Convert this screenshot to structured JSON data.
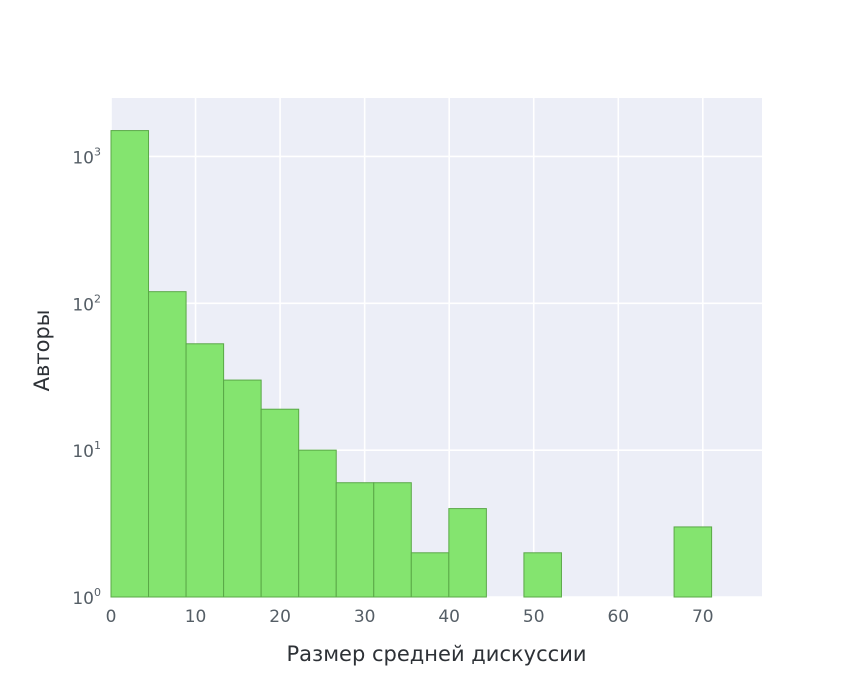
{
  "chart_data": {
    "type": "bar",
    "xlabel": "Размер средней дискуссии",
    "ylabel": "Авторы",
    "yscale": "log",
    "xlim": [
      0,
      77
    ],
    "ylim": [
      1,
      2500
    ],
    "grid": true,
    "colors": {
      "bar": "#84e46f",
      "bar_edge": "#5aa847",
      "plot_bg": "#eceef7",
      "grid": "#ffffff"
    },
    "bin_edges": [
      0,
      4.44,
      8.88,
      13.32,
      17.76,
      22.2,
      26.64,
      31.08,
      35.52,
      39.96,
      44.4,
      48.84,
      53.28,
      57.72,
      62.16,
      66.6,
      71.04
    ],
    "values": [
      1500,
      120,
      53,
      30,
      19,
      10,
      6,
      6,
      2,
      4,
      0,
      2,
      0,
      0,
      0,
      3
    ],
    "x_ticks": [
      {
        "value": 0,
        "label": "0"
      },
      {
        "value": 10,
        "label": "10"
      },
      {
        "value": 20,
        "label": "20"
      },
      {
        "value": 30,
        "label": "30"
      },
      {
        "value": 40,
        "label": "40"
      },
      {
        "value": 50,
        "label": "50"
      },
      {
        "value": 60,
        "label": "60"
      },
      {
        "value": 70,
        "label": "70"
      }
    ],
    "y_ticks": [
      {
        "value": 1,
        "base": "10",
        "exp": "0"
      },
      {
        "value": 10,
        "base": "10",
        "exp": "1"
      },
      {
        "value": 100,
        "base": "10",
        "exp": "2"
      },
      {
        "value": 1000,
        "base": "10",
        "exp": "3"
      }
    ]
  }
}
